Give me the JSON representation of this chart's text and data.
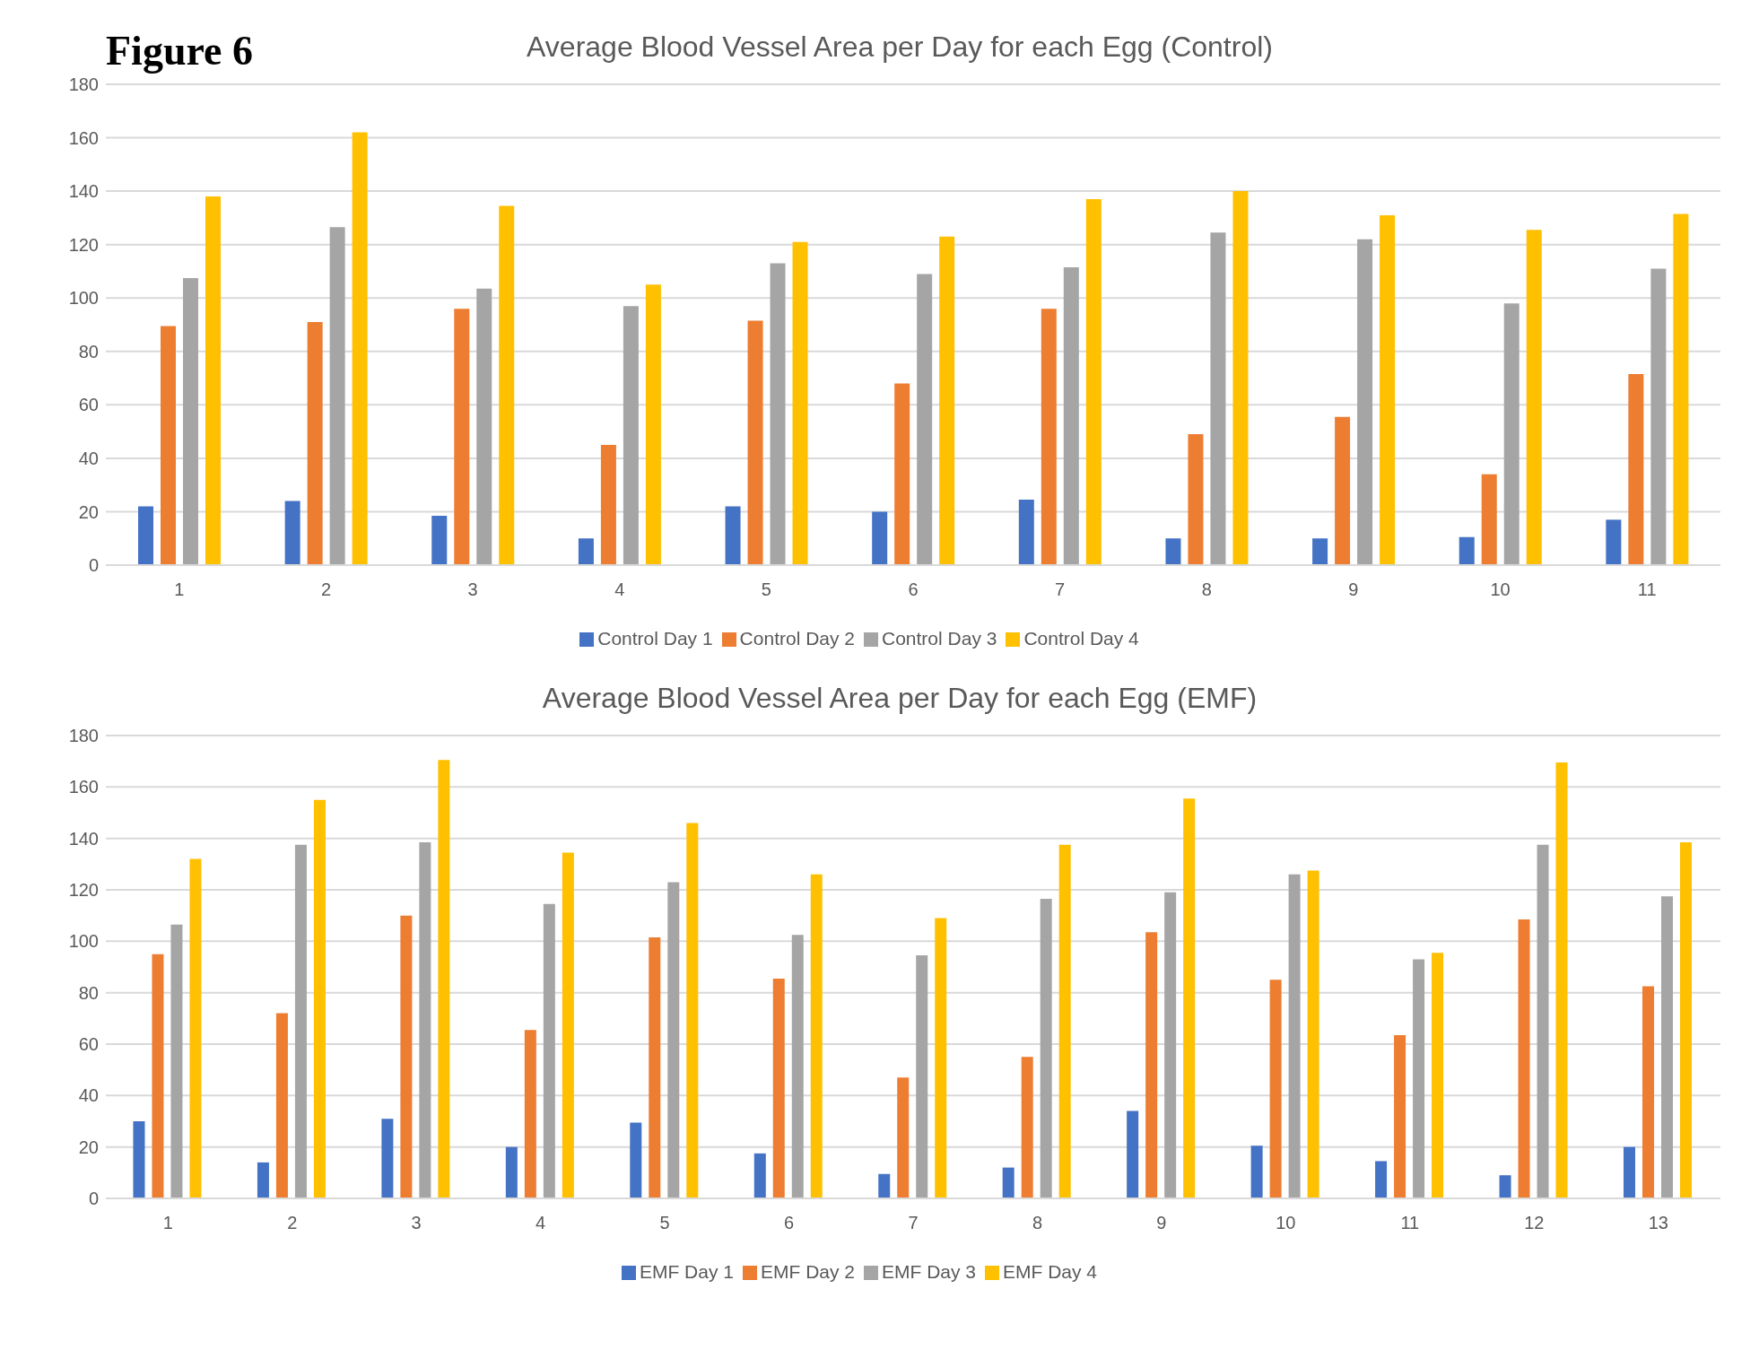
{
  "chart_data": [
    {
      "type": "bar",
      "title": "Average Blood Vessel Area per Day for each Egg (Control)",
      "annotations": [
        "Figure 6"
      ],
      "categories": [
        "1",
        "2",
        "3",
        "4",
        "5",
        "6",
        "7",
        "8",
        "9",
        "10",
        "11"
      ],
      "series": [
        {
          "name": "Control Day 1",
          "color": "#4472c4",
          "values": [
            22,
            24,
            18.5,
            10,
            22,
            20,
            24.5,
            10,
            10,
            10.5,
            17
          ]
        },
        {
          "name": "Control Day 2",
          "color": "#ed7d31",
          "values": [
            89.5,
            91,
            96,
            45,
            91.5,
            68,
            96,
            49,
            55.5,
            34,
            71.5
          ]
        },
        {
          "name": "Control Day 3",
          "color": "#a5a5a5",
          "values": [
            107.5,
            126.5,
            103.5,
            97,
            113,
            109,
            111.5,
            124.5,
            122,
            98,
            111
          ]
        },
        {
          "name": "Control Day 4",
          "color": "#ffc000",
          "values": [
            138,
            162,
            134.5,
            105,
            121,
            123,
            137,
            140,
            131,
            125.5,
            131.5
          ]
        }
      ],
      "ylim": [
        0,
        180
      ],
      "yticks": [
        0,
        20,
        40,
        60,
        80,
        100,
        120,
        140,
        160,
        180
      ],
      "grid": "y",
      "legend": "bottom"
    },
    {
      "type": "bar",
      "title": "Average Blood Vessel Area per Day for each Egg (EMF)",
      "categories": [
        "1",
        "2",
        "3",
        "4",
        "5",
        "6",
        "7",
        "8",
        "9",
        "10",
        "11",
        "12",
        "13"
      ],
      "series": [
        {
          "name": "EMF Day 1",
          "color": "#4472c4",
          "values": [
            30,
            14,
            31,
            20,
            29.5,
            17.5,
            9.5,
            12,
            34,
            20.5,
            14.5,
            9,
            20
          ]
        },
        {
          "name": "EMF Day 2",
          "color": "#ed7d31",
          "values": [
            95,
            72,
            110,
            65.5,
            101.5,
            85.5,
            47,
            55,
            103.5,
            85,
            63.5,
            108.5,
            82.5
          ]
        },
        {
          "name": "EMF Day 3",
          "color": "#a5a5a5",
          "values": [
            106.5,
            137.5,
            138.5,
            114.5,
            123,
            102.5,
            94.5,
            116.5,
            119,
            126,
            93,
            137.5,
            117.5
          ]
        },
        {
          "name": "EMF Day 4",
          "color": "#ffc000",
          "values": [
            132,
            155,
            170.5,
            134.5,
            146,
            126,
            109,
            137.5,
            155.5,
            127.5,
            95.5,
            169.5,
            138.5
          ]
        }
      ],
      "ylim": [
        0,
        180
      ],
      "yticks": [
        0,
        20,
        40,
        60,
        80,
        100,
        120,
        140,
        160,
        180
      ],
      "grid": "y",
      "legend": "bottom"
    }
  ]
}
